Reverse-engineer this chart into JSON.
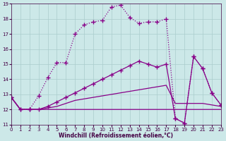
{
  "xlabel": "Windchill (Refroidissement éolien,°C)",
  "background_color": "#cce8e8",
  "grid_color": "#aacccc",
  "line_color": "#880088",
  "text_color": "#440044",
  "xlim": [
    0,
    23
  ],
  "ylim": [
    11,
    19
  ],
  "xticks": [
    0,
    1,
    2,
    3,
    4,
    5,
    6,
    7,
    8,
    9,
    10,
    11,
    12,
    13,
    14,
    15,
    16,
    17,
    18,
    19,
    20,
    21,
    22,
    23
  ],
  "yticks": [
    11,
    12,
    13,
    14,
    15,
    16,
    17,
    18,
    19
  ],
  "line1_x": [
    0,
    1,
    2,
    3,
    4,
    5,
    6,
    7,
    8,
    9,
    10,
    11,
    12,
    13,
    14,
    15,
    16,
    17,
    18,
    19,
    20,
    21,
    22,
    23
  ],
  "line1_y": [
    12.8,
    12.0,
    12.0,
    12.9,
    14.1,
    15.1,
    15.1,
    17.0,
    17.6,
    17.8,
    17.9,
    18.8,
    18.9,
    18.1,
    17.7,
    17.8,
    17.8,
    18.0,
    11.4,
    11.1,
    15.5,
    14.7,
    13.1,
    12.3
  ],
  "line2_x": [
    0,
    1,
    2,
    3,
    4,
    5,
    6,
    7,
    8,
    9,
    10,
    11,
    12,
    13,
    14,
    15,
    16,
    17,
    18,
    19,
    20,
    21,
    22,
    23
  ],
  "line2_y": [
    12.8,
    12.0,
    12.0,
    12.0,
    12.2,
    12.5,
    12.8,
    13.1,
    13.4,
    13.7,
    14.0,
    14.3,
    14.6,
    14.9,
    15.2,
    15.0,
    14.8,
    15.0,
    11.4,
    11.1,
    15.5,
    14.7,
    13.1,
    12.3
  ],
  "line3_x": [
    0,
    1,
    2,
    3,
    4,
    5,
    6,
    7,
    8,
    9,
    10,
    11,
    12,
    13,
    14,
    15,
    16,
    17,
    18,
    19,
    20,
    21,
    22,
    23
  ],
  "line3_y": [
    12.8,
    12.0,
    12.0,
    12.0,
    12.1,
    12.2,
    12.4,
    12.6,
    12.7,
    12.8,
    12.9,
    13.0,
    13.1,
    13.2,
    13.3,
    13.4,
    13.5,
    13.6,
    12.4,
    12.4,
    12.4,
    12.4,
    12.3,
    12.2
  ],
  "line4_x": [
    0,
    1,
    2,
    3,
    4,
    5,
    6,
    7,
    8,
    9,
    10,
    11,
    12,
    13,
    14,
    15,
    16,
    17,
    18,
    19,
    20,
    21,
    22,
    23
  ],
  "line4_y": [
    12.8,
    12.0,
    12.0,
    12.0,
    12.0,
    12.0,
    12.0,
    12.0,
    12.0,
    12.0,
    12.0,
    12.0,
    12.0,
    12.0,
    12.0,
    12.0,
    12.0,
    12.0,
    12.0,
    12.0,
    12.0,
    12.0,
    12.0,
    12.0
  ]
}
